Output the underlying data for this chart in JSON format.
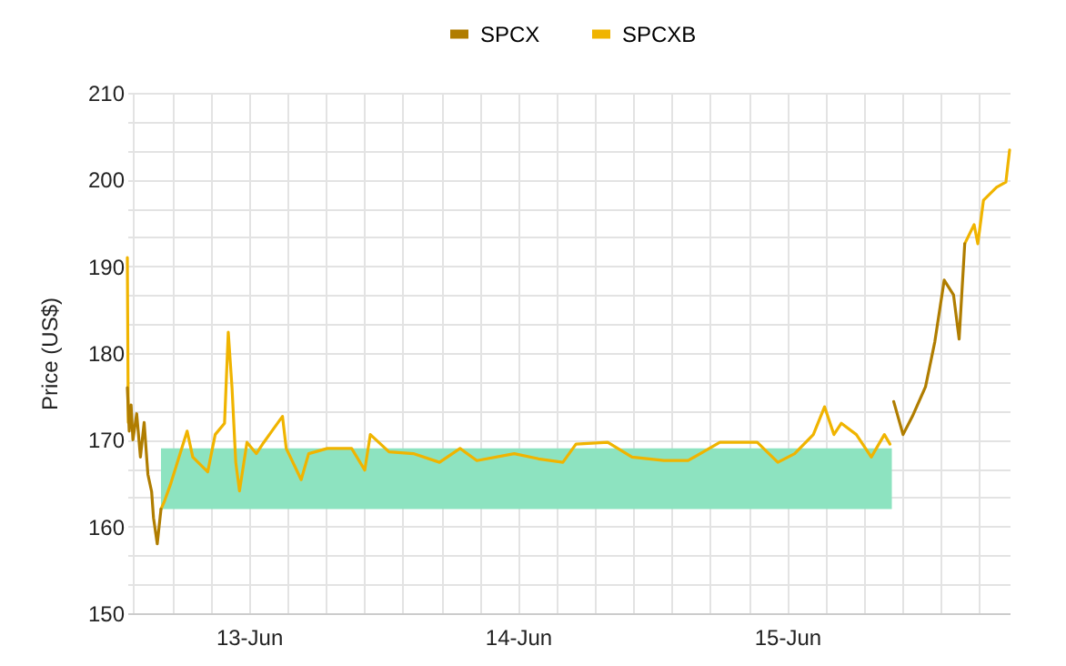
{
  "chart_data": {
    "type": "line",
    "ylabel": "Price (US$)",
    "legend": "top",
    "grid": true,
    "xlim": [
      "--06-12T13:10",
      "--06-15T19:50"
    ],
    "xticks": [
      {
        "value": "--06-12T13:43",
        "label": null
      },
      {
        "value": "--06-12T17:09",
        "label": null
      },
      {
        "value": "--06-12T20:34",
        "label": null
      },
      {
        "value": "--06-13",
        "label": "13-Jun"
      },
      {
        "value": "--06-13T03:26",
        "label": null
      },
      {
        "value": "--06-13T06:51",
        "label": null
      },
      {
        "value": "--06-13T10:17",
        "label": null
      },
      {
        "value": "--06-13T13:43",
        "label": null
      },
      {
        "value": "--06-13T17:09",
        "label": null
      },
      {
        "value": "--06-13T20:34",
        "label": null
      },
      {
        "value": "--06-14",
        "label": "14-Jun"
      },
      {
        "value": "--06-14T03:26",
        "label": null
      },
      {
        "value": "--06-14T06:51",
        "label": null
      },
      {
        "value": "--06-14T10:17",
        "label": null
      },
      {
        "value": "--06-14T13:43",
        "label": null
      },
      {
        "value": "--06-14T17:09",
        "label": null
      },
      {
        "value": "--06-14T20:34",
        "label": null
      },
      {
        "value": "--06-15",
        "label": "15-Jun"
      },
      {
        "value": "--06-15T03:26",
        "label": null
      },
      {
        "value": "--06-15T06:51",
        "label": null
      },
      {
        "value": "--06-15T10:17",
        "label": null
      },
      {
        "value": "--06-15T13:43",
        "label": null
      },
      {
        "value": "--06-15T17:09",
        "label": null
      }
    ],
    "ylim": [
      150,
      210
    ],
    "yticks": [
      150,
      {
        "value": 153.33,
        "label": null
      },
      {
        "value": 156.67,
        "label": null
      },
      160,
      {
        "value": 163.33,
        "label": null
      },
      {
        "value": 166.67,
        "label": null
      },
      170,
      {
        "value": 173.33,
        "label": null
      },
      {
        "value": 176.67,
        "label": null
      },
      180,
      {
        "value": 183.33,
        "label": null
      },
      {
        "value": 186.67,
        "label": null
      },
      190,
      {
        "value": 193.33,
        "label": null
      },
      {
        "value": 196.67,
        "label": null
      },
      200,
      {
        "value": 203.33,
        "label": null
      },
      {
        "value": 206.67,
        "label": null
      },
      210
    ],
    "series": [
      {
        "type": "area",
        "color": "#8de3c0",
        "x": [
          "--06-12T16:10",
          "--06-15T09:20"
        ],
        "values": [
          null,
          null
        ],
        "lower": [
          162,
          162
        ],
        "upper": [
          169,
          169
        ]
      },
      {
        "name": "SPCX",
        "color": "#b07d00",
        "x": [
          "--06-12T13:10",
          "--06-12T13:20",
          "--06-12T13:30",
          "--06-12T13:40",
          "--06-12T14:00",
          "--06-12T14:20",
          "--06-12T14:40",
          "--06-12T15:00",
          "--06-12T15:20",
          "--06-12T15:30",
          "--06-12T15:50",
          "--06-12T16:00",
          "--06-12T16:10",
          "--06-13T12:00",
          "--06-15T09:30",
          "--06-15T10:20",
          "--06-15T11:10",
          "--06-15T12:20",
          "--06-15T13:10",
          "--06-15T14:00",
          "--06-15T14:50",
          "--06-15T15:20",
          "--06-15T15:50"
        ],
        "values": [
          176,
          171,
          174,
          170,
          173,
          168,
          172,
          166,
          164,
          161,
          158,
          160,
          162,
          null,
          174.4,
          170.6,
          172.7,
          176.1,
          181.3,
          188.4,
          186.7,
          181.6,
          192.6
        ]
      },
      {
        "name": "SPCXB",
        "color": "#f0b400",
        "x": [
          "--06-12T13:10",
          "--06-12T13:15",
          "--06-12T14:00",
          "--06-12T16:10",
          "--06-12T16:30",
          "--06-12T17:00",
          "--06-12T18:30",
          "--06-12T19:00",
          "--06-12T20:20",
          "--06-12T21:00",
          "--06-12T21:50",
          "--06-12T22:10",
          "--06-12T22:30",
          "--06-12T22:50",
          "--06-12T23:10",
          "--06-12T23:50",
          "--06-13T00:40",
          "--06-13T01:20",
          "--06-13T02:10",
          "--06-13T03:00",
          "--06-13T03:20",
          "--06-13T04:40",
          "--06-13T05:20",
          "--06-13T07:00",
          "--06-13T09:10",
          "--06-13T10:20",
          "--06-13T10:50",
          "--06-13T12:30",
          "--06-13T14:40",
          "--06-13T17:00",
          "--06-13T18:50",
          "--06-13T20:20",
          "--06-13T23:40",
          "--06-14T01:50",
          "--06-14T04:00",
          "--06-14T05:10",
          "--06-14T08:00",
          "--06-14T10:10",
          "--06-14T13:00",
          "--06-14T15:10",
          "--06-14T18:00",
          "--06-14T21:20",
          "--06-14T23:10",
          "--06-15T00:40",
          "--06-15T02:20",
          "--06-15T03:20",
          "--06-15T04:10",
          "--06-15T04:50",
          "--06-15T06:10",
          "--06-15T07:30",
          "--06-15T08:40",
          "--06-15T09:10",
          "--06-15T12:00",
          "--06-15T15:50",
          "--06-15T16:40",
          "--06-15T17:00",
          "--06-15T17:30",
          "--06-15T18:40",
          "--06-15T19:30",
          "--06-15T19:50"
        ],
        "values": [
          191,
          172,
          null,
          162,
          163,
          164.8,
          171,
          168,
          166.3,
          170.6,
          171.9,
          182.4,
          176,
          167.4,
          164.1,
          169.7,
          168.4,
          169.7,
          171.2,
          172.7,
          169,
          165.4,
          168.4,
          169,
          169,
          166.5,
          170.6,
          168.6,
          168.4,
          167.4,
          169,
          167.6,
          168.4,
          167.8,
          167.4,
          169.5,
          169.7,
          168,
          167.6,
          167.6,
          169.7,
          169.7,
          167.4,
          168.4,
          170.6,
          173.8,
          170.6,
          171.9,
          170.6,
          168,
          170.6,
          169.5,
          null,
          192.6,
          194.8,
          192.6,
          197.6,
          199.1,
          199.7,
          203.4
        ]
      }
    ]
  }
}
